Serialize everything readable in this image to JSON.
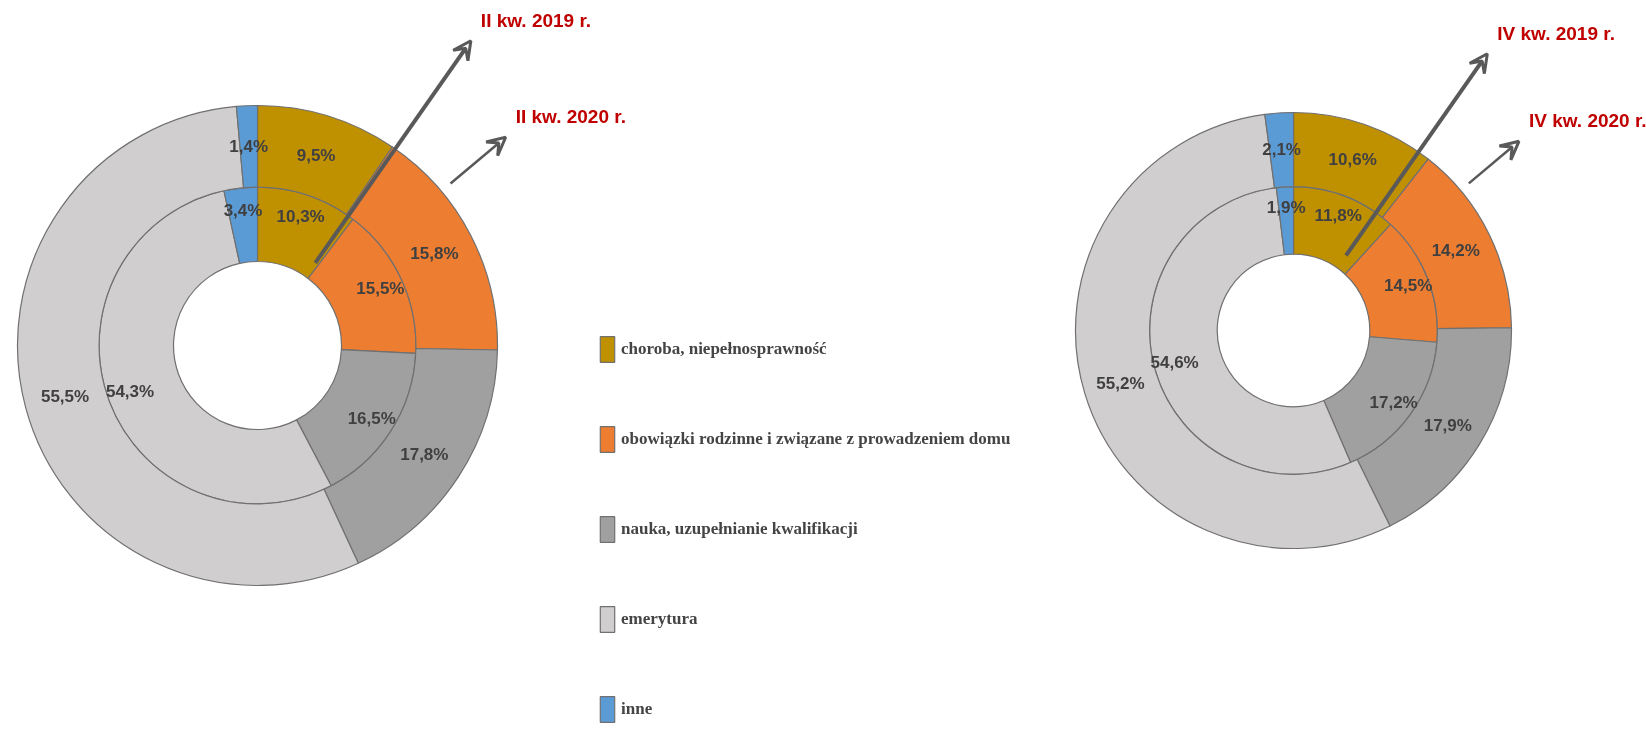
{
  "chart_data": [
    {
      "type": "donut",
      "categories": [
        "choroba, niepełnosprawność",
        "obowiązki rodzinne i związane z prowadzeniem domu",
        "nauka, uzupełnianie kwalifikacji",
        "emerytura",
        "inne"
      ],
      "colors": [
        "#bf9000",
        "#ed7d31",
        "#a0a0a0",
        "#d0cece",
        "#5b9bd5"
      ],
      "series": [
        {
          "name": "II kw. 2019  r.",
          "values": [
            10.3,
            15.5,
            16.5,
            54.3,
            3.4
          ],
          "value_labels": [
            "10,3%",
            "15,5%",
            "16,5%",
            "54,3%",
            "3,4%"
          ]
        },
        {
          "name": "II kw. 2020 r.",
          "values": [
            9.5,
            15.8,
            17.8,
            55.5,
            1.4
          ],
          "value_labels": [
            "9,5%",
            "15,8%",
            "17,8%",
            "55,5%",
            "1,4%"
          ]
        }
      ],
      "legend": "right"
    },
    {
      "type": "donut",
      "categories": [
        null,
        null,
        null,
        null,
        null
      ],
      "colors": [
        "#bf9000",
        "#ed7d31",
        "#a0a0a0",
        "#d0cece",
        "#5b9bd5"
      ],
      "series": [
        {
          "name": "IV kw. 2019 r.",
          "values": [
            11.8,
            14.5,
            17.2,
            54.6,
            1.9
          ],
          "value_labels": [
            "11,8%",
            "14,5%",
            "17,2%",
            "54,6%",
            "1,9%"
          ]
        },
        {
          "name": "IV kw. 2020 r.",
          "values": [
            10.6,
            14.2,
            17.9,
            55.2,
            2.1
          ],
          "value_labels": [
            "10,6%",
            "14,2%",
            "17,9%",
            "55,2%",
            "2,1%"
          ]
        }
      ]
    }
  ]
}
